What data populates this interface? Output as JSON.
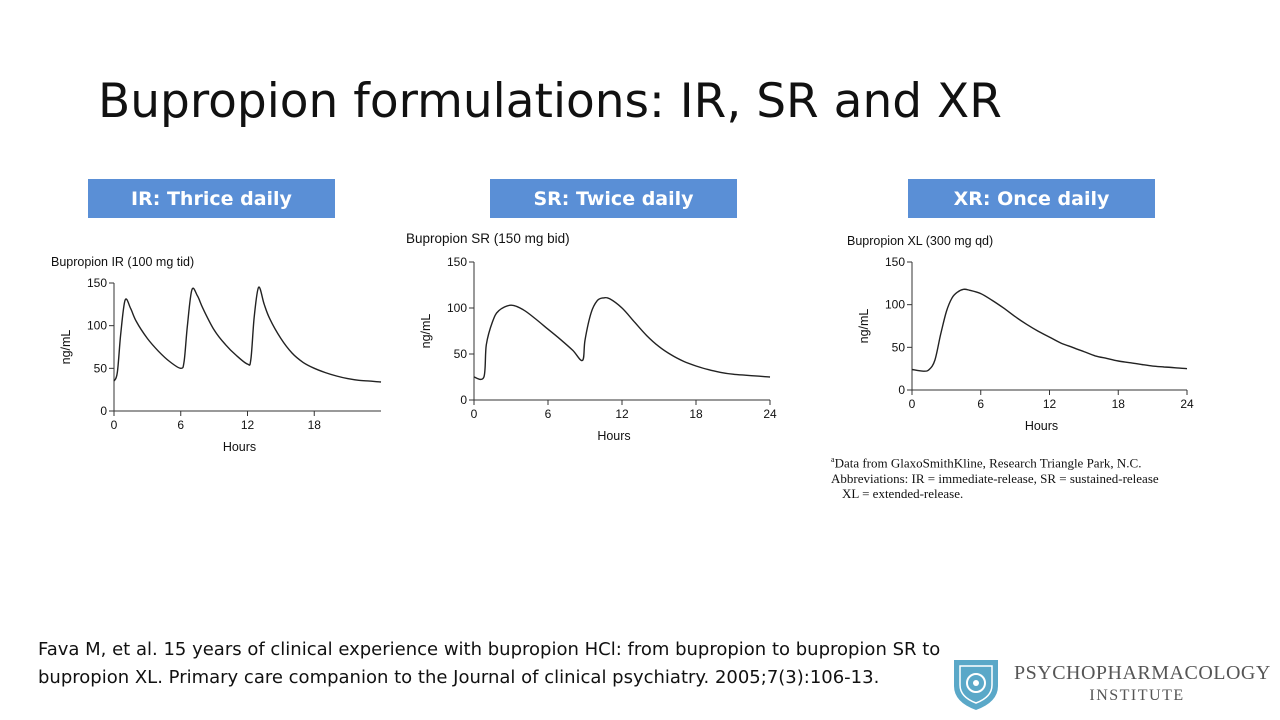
{
  "title": "Bupropion formulations: IR, SR and XR",
  "labels": {
    "ir": "IR: Thrice daily",
    "sr": "SR: Twice daily",
    "xr": "XR: Once daily"
  },
  "chart_data": [
    {
      "type": "line",
      "title": "Bupropion IR (100 mg tid)",
      "xlabel": "Hours",
      "ylabel": "ng/mL",
      "xlim": [
        0,
        24
      ],
      "ylim": [
        0,
        150
      ],
      "xticks": [
        0,
        6,
        12,
        18
      ],
      "yticks": [
        0,
        50,
        100,
        150
      ],
      "x": [
        0,
        0.3,
        0.6,
        1,
        1.5,
        2,
        3,
        4,
        5,
        6,
        6.3,
        6.6,
        7,
        7.5,
        8,
        9,
        10,
        11,
        12,
        12.3,
        12.6,
        13,
        13.5,
        14,
        15,
        16,
        17,
        18,
        19,
        20,
        21,
        22,
        23,
        24
      ],
      "y": [
        35,
        45,
        90,
        130,
        120,
        105,
        85,
        70,
        58,
        50,
        58,
        100,
        142,
        135,
        120,
        95,
        78,
        65,
        55,
        60,
        110,
        145,
        125,
        108,
        85,
        68,
        57,
        50,
        45,
        41,
        38,
        36,
        35,
        34
      ]
    },
    {
      "type": "line",
      "title": "Bupropion SR (150 mg bid)",
      "xlabel": "Hours",
      "ylabel": "ng/mL",
      "xlim": [
        0,
        24
      ],
      "ylim": [
        0,
        150
      ],
      "xticks": [
        0,
        6,
        12,
        18,
        24
      ],
      "yticks": [
        0,
        50,
        100,
        150
      ],
      "x": [
        0,
        0.8,
        1,
        1.5,
        2,
        3,
        4,
        5,
        6,
        7,
        8,
        8.8,
        9,
        9.5,
        10,
        10.5,
        11,
        12,
        13,
        14,
        15,
        16,
        17,
        18,
        19,
        20,
        21,
        22,
        23,
        24
      ],
      "y": [
        25,
        25,
        60,
        85,
        97,
        103,
        98,
        88,
        77,
        66,
        54,
        43,
        65,
        95,
        108,
        111,
        110,
        100,
        85,
        70,
        58,
        49,
        42,
        37,
        33,
        30,
        28,
        27,
        26,
        25
      ]
    },
    {
      "type": "line",
      "title": "Bupropion XL (300 mg qd)",
      "xlabel": "Hours",
      "ylabel": "ng/mL",
      "xlim": [
        0,
        24
      ],
      "ylim": [
        0,
        150
      ],
      "xticks": [
        0,
        6,
        12,
        18,
        24
      ],
      "yticks": [
        0,
        50,
        100,
        150
      ],
      "x": [
        0,
        1,
        1.5,
        2,
        2.5,
        3,
        3.5,
        4,
        4.5,
        5,
        6,
        7,
        8,
        9,
        10,
        11,
        12,
        13,
        14,
        15,
        16,
        17,
        18,
        19,
        20,
        21,
        22,
        23,
        24
      ],
      "y": [
        24,
        22,
        24,
        35,
        65,
        92,
        108,
        115,
        118,
        117,
        113,
        105,
        96,
        86,
        77,
        69,
        62,
        55,
        50,
        45,
        40,
        37,
        34,
        32,
        30,
        28,
        27,
        26,
        25
      ]
    }
  ],
  "footnote": {
    "line1_sup": "a",
    "line1": "Data from GlaxoSmithKline, Research Triangle Park, N.C.",
    "line2": "Abbreviations: IR = immediate-release, SR = sustained-release",
    "line3": "XL = extended-release."
  },
  "citation": {
    "line1": "Fava M, et al. 15 years of clinical experience with bupropion HCl: from bupropion to bupropion SR to",
    "line2": "bupropion XL. Primary care companion to the Journal of clinical psychiatry. 2005;7(3):106-13."
  },
  "logo": {
    "line1": "PSYCHOPHARMACOLOGY",
    "line2": "INSTITUTE"
  },
  "colors": {
    "label_box": "#5a8fd6",
    "curve": "#222222",
    "logo_shield": "#5aa8c8"
  }
}
